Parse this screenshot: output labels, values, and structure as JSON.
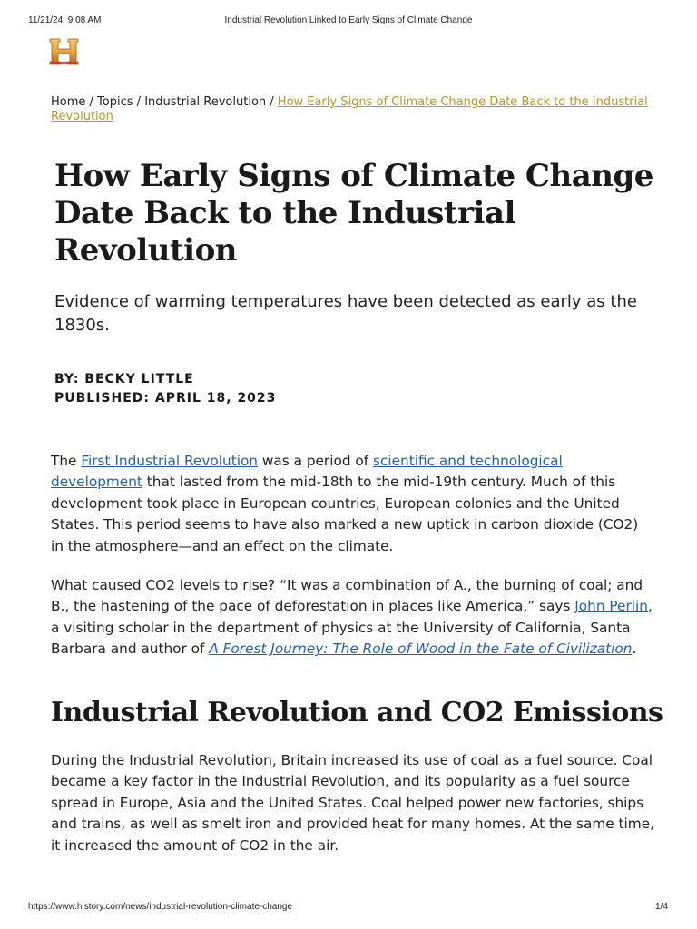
{
  "print_header": {
    "datetime": "11/21/24, 9:08 AM",
    "doc_title": "Industrial Revolution Linked to Early Signs of Climate Change"
  },
  "logo": {
    "letter": "H",
    "colors": {
      "gold_light": "#f2c14e",
      "gold_dark": "#b8741a",
      "red": "#c0392b"
    }
  },
  "breadcrumb": {
    "items": [
      "Home",
      "Topics",
      "Industrial Revolution"
    ],
    "separator": " / ",
    "current": "How Early Signs of Climate Change Date Back to the Industrial Revolution"
  },
  "article": {
    "headline": "How Early Signs of Climate Change Date Back to the Industrial Revolution",
    "subhead": "Evidence of warming temperatures have been detected as early as the 1830s.",
    "byline": "BY: BECKY LITTLE",
    "published": "PUBLISHED: APRIL 18, 2023",
    "p1": {
      "t1": "The ",
      "link1": "First Industrial Revolution",
      "t2": " was a period of ",
      "link2": "scientific and technological development",
      "t3": " that lasted from the mid-18th to the mid-19th century. Much of this development took place in European countries, European colonies and the United States. This period seems to have also marked a new uptick in carbon dioxide (CO2) in the atmosphere—and an effect on the climate."
    },
    "p2": {
      "t1": "What caused CO2 levels to rise? “It was a combination of A., the burning of coal; and B., the hastening of the pace of deforestation in places like America,” says ",
      "link1": "John Perlin",
      "t2": ", a visiting scholar in the department of physics at the University of California, Santa Barbara and author of ",
      "link2": "A Forest Journey: The Role of Wood in the Fate of Civilization",
      "t3": "."
    },
    "section_heading": "Industrial Revolution and CO2 Emissions",
    "p3": "During the Industrial Revolution, Britain increased its use of coal as a fuel source. Coal became a key factor in the Industrial Revolution, and its popularity as a fuel source spread in Europe, Asia and the United States. Coal helped power new factories, ships and trains, as well as smelt iron and provided heat for many homes. At the same time, it increased the amount of CO2 in the air."
  },
  "print_footer": {
    "url": "https://www.history.com/news/industrial-revolution-climate-change",
    "page": "1/4"
  },
  "colors": {
    "link": "#1f5fc0",
    "breadcrumb_current": "#c4951d",
    "text": "#222222"
  }
}
